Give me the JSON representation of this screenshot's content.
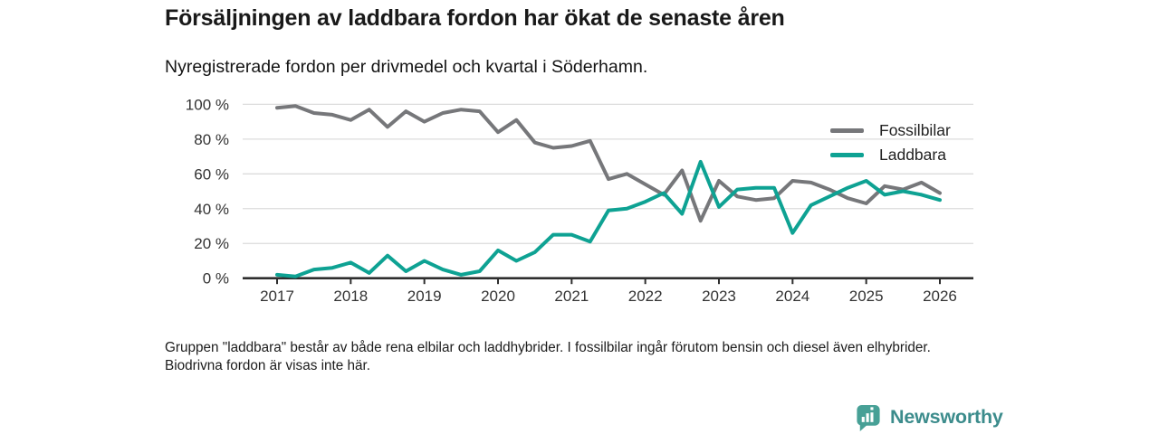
{
  "header": {
    "title": "Försäljningen av laddbara fordon har ökat de senaste åren",
    "subtitle": "Nyregistrerade fordon per drivmedel och kvartal i Söderhamn."
  },
  "chart_data": {
    "type": "line",
    "x_unit": "quarter",
    "quarters": [
      "2017 Q1",
      "2017 Q2",
      "2017 Q3",
      "2017 Q4",
      "2018 Q1",
      "2018 Q2",
      "2018 Q3",
      "2018 Q4",
      "2019 Q1",
      "2019 Q2",
      "2019 Q3",
      "2019 Q4",
      "2020 Q1",
      "2020 Q2",
      "2020 Q3",
      "2020 Q4",
      "2021 Q1",
      "2021 Q2",
      "2021 Q3",
      "2021 Q4",
      "2022 Q1",
      "2022 Q2",
      "2022 Q3",
      "2022 Q4",
      "2023 Q1",
      "2023 Q2",
      "2023 Q3",
      "2023 Q4",
      "2024 Q1",
      "2024 Q2",
      "2024 Q3",
      "2024 Q4",
      "2025 Q1",
      "2025 Q2",
      "2025 Q3",
      "2025 Q4",
      "2026 Q1"
    ],
    "series": [
      {
        "name": "Fossilbilar",
        "color": "#76777A",
        "values": [
          98,
          99,
          95,
          94,
          91,
          97,
          87,
          96,
          90,
          95,
          97,
          96,
          84,
          91,
          78,
          75,
          76,
          79,
          57,
          60,
          54,
          48,
          62,
          33,
          56,
          47,
          45,
          46,
          56,
          55,
          51,
          46,
          43,
          53,
          51,
          55,
          49
        ]
      },
      {
        "name": "Laddbara",
        "color": "#0EA293",
        "values": [
          2,
          1,
          5,
          6,
          9,
          3,
          13,
          4,
          10,
          5,
          2,
          4,
          16,
          10,
          15,
          25,
          25,
          21,
          39,
          40,
          44,
          49,
          37,
          67,
          41,
          51,
          52,
          52,
          26,
          42,
          47,
          52,
          56,
          48,
          50,
          48,
          45
        ]
      }
    ],
    "yticks": [
      "0 %",
      "20 %",
      "40 %",
      "60 %",
      "80 %",
      "100 %"
    ],
    "xticks": [
      "2017",
      "2018",
      "2019",
      "2020",
      "2021",
      "2022",
      "2023",
      "2024",
      "2025",
      "2026"
    ],
    "ylim": [
      0,
      100
    ],
    "grid": true,
    "legend_position": "top-right",
    "axis_color": "#2E2E2E",
    "gridline_color": "#DCDCDC"
  },
  "footnote": {
    "text": "Gruppen \"laddbara\" består av både rena elbilar och laddhybrider. I fossilbilar ingår förutom bensin och diesel även elhybrider. Biodrivna fordon är visas inte här."
  },
  "logo": {
    "text": "Newsworthy",
    "icon_color": "#47A096",
    "text_color": "#3C8C8C"
  }
}
